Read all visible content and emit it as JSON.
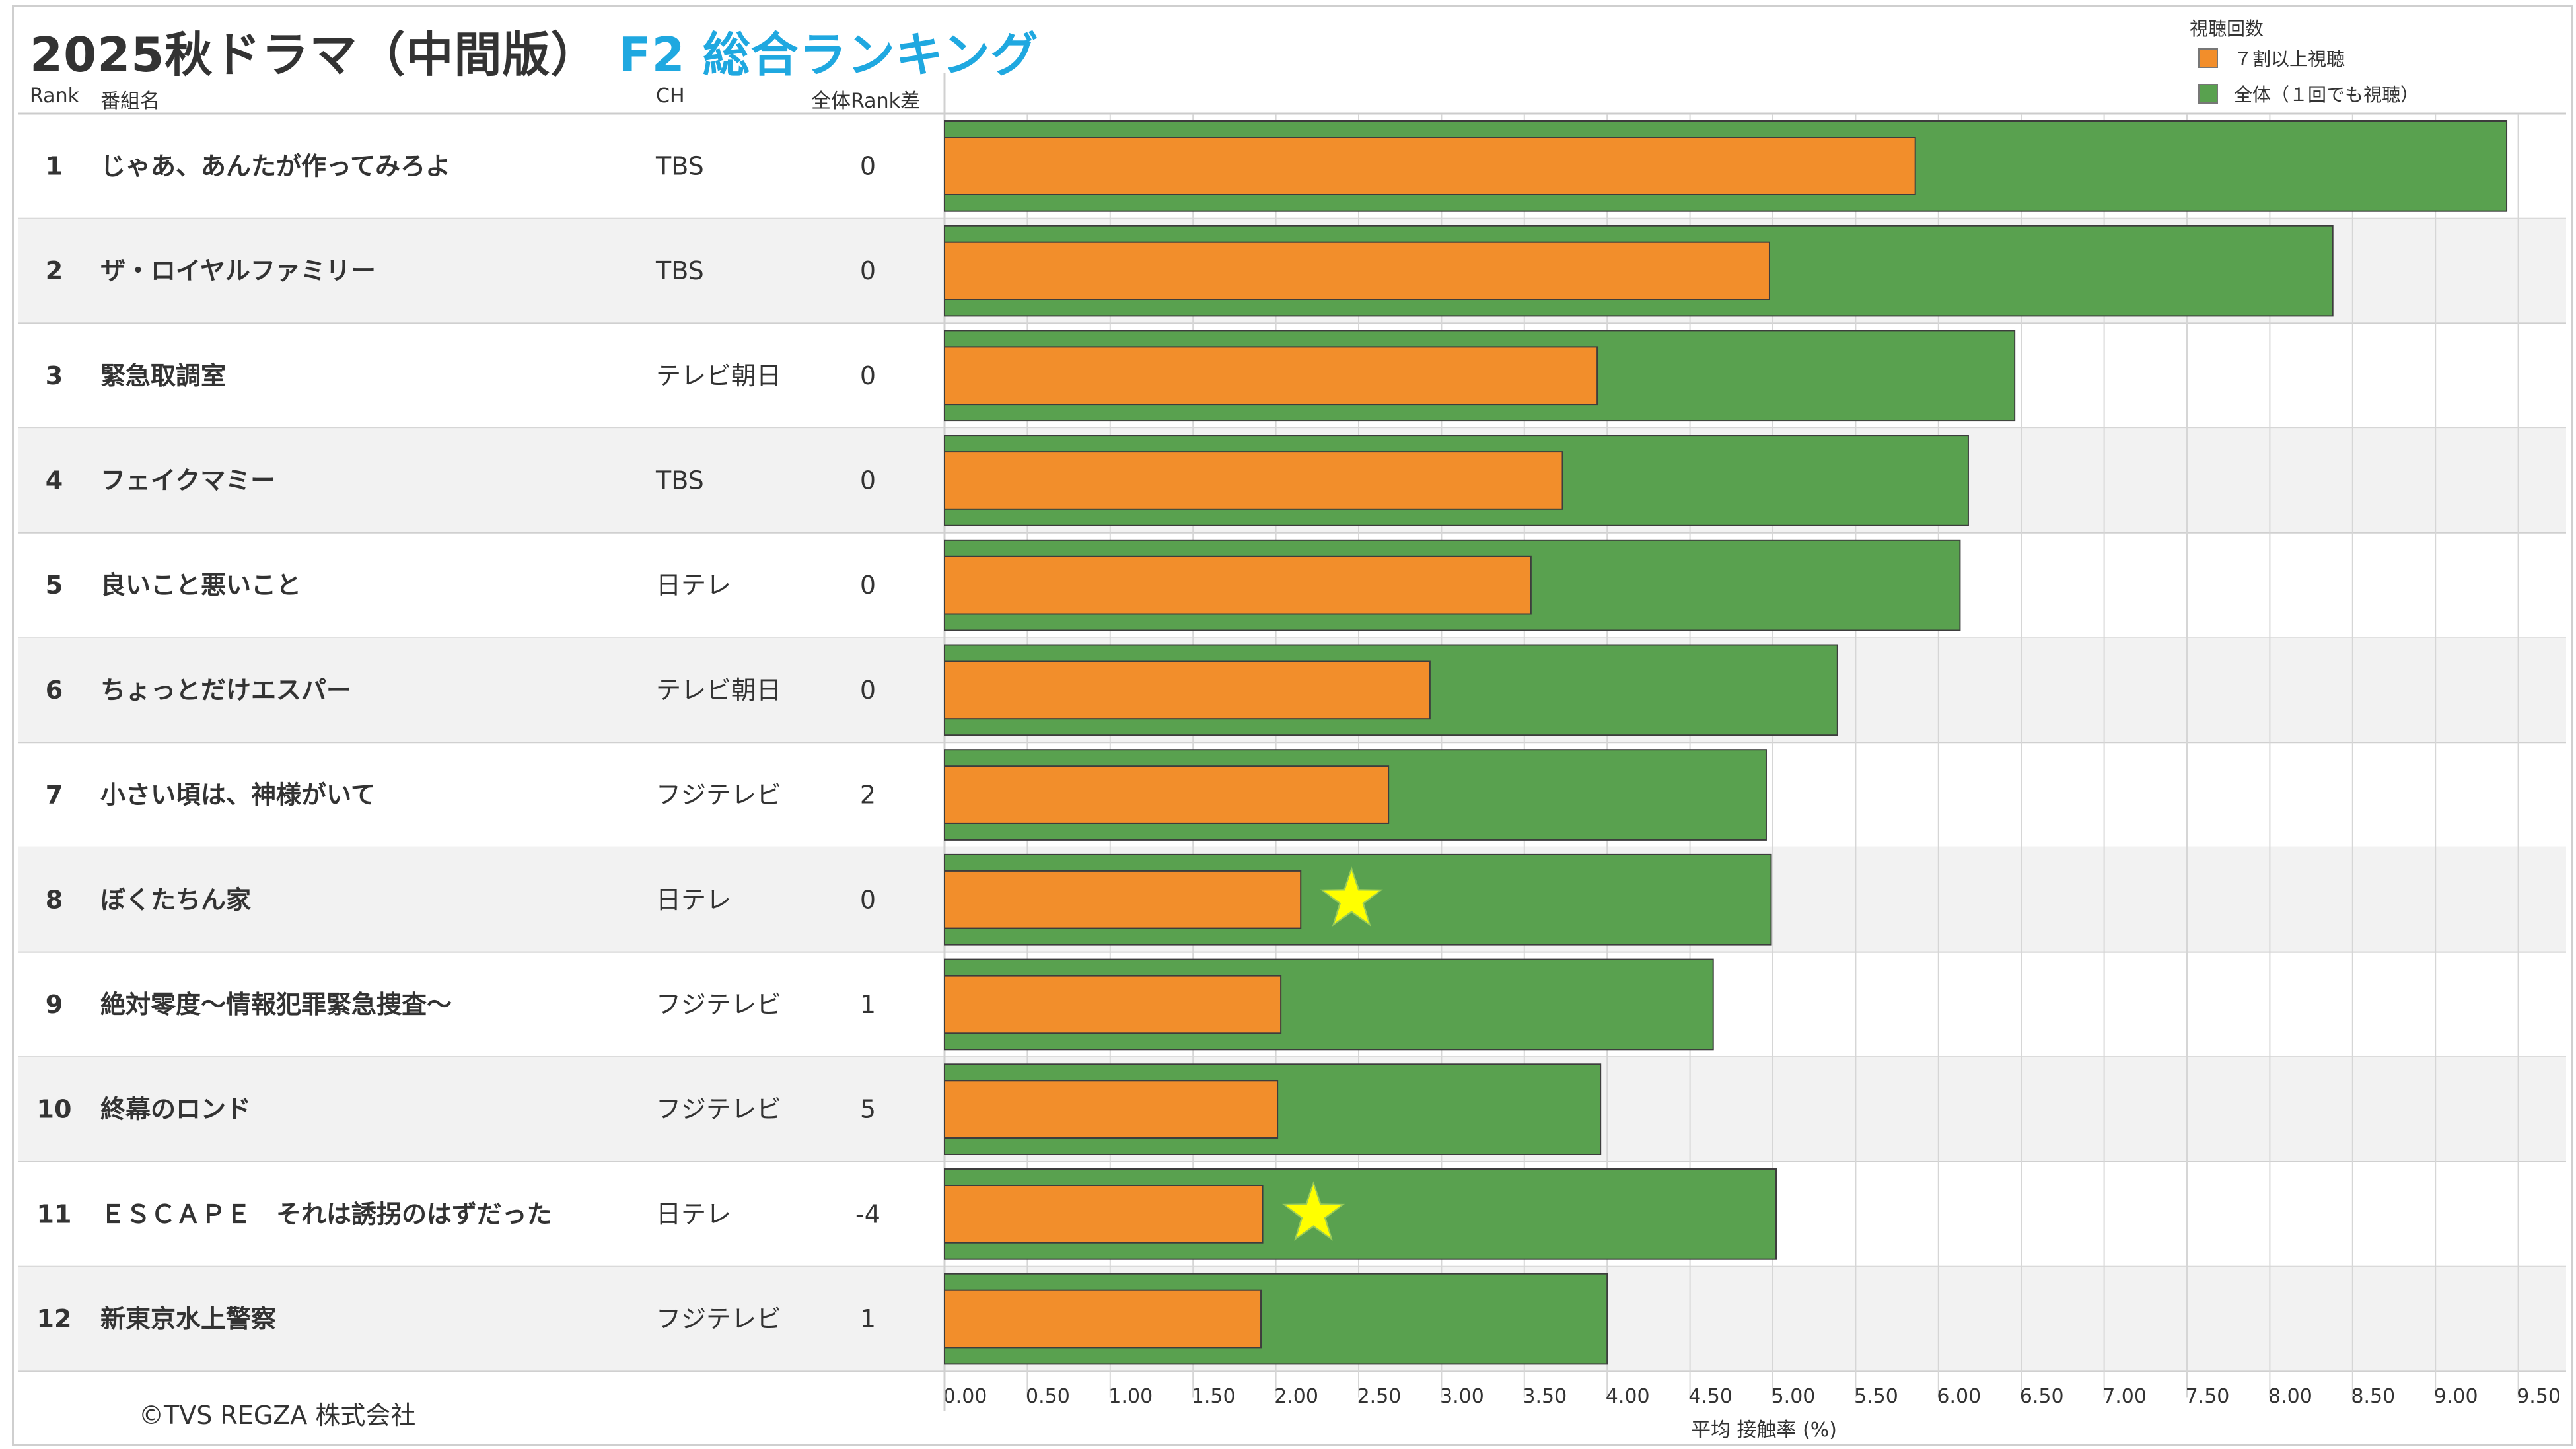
{
  "title": {
    "main": "2025秋ドラマ（中間版）",
    "sub": "F2 総合ランキング"
  },
  "table_headers": {
    "rank": "Rank",
    "program": "番組名",
    "channel": "CH",
    "rank_diff": "全体Rank差"
  },
  "legend": {
    "title": "視聴回数",
    "items": [
      {
        "label": "７割以上視聴",
        "color": "#f28e2b"
      },
      {
        "label": "全体（１回でも視聴）",
        "color": "#59a14f"
      }
    ]
  },
  "copyright": "©TVS REGZA 株式会社",
  "colors": {
    "orange": "#f28e2b",
    "green": "#59a14f",
    "row_alt": "#f2f2f2",
    "star": "#ffff00"
  },
  "chart_data": {
    "type": "bar",
    "orientation": "horizontal",
    "xlabel": "平均 接触率 (%)",
    "xlim": [
      0,
      9.5
    ],
    "x_ticks": [
      "0.00",
      "0.50",
      "1.00",
      "1.50",
      "2.00",
      "2.50",
      "3.00",
      "3.50",
      "4.00",
      "4.50",
      "5.00",
      "5.50",
      "6.00",
      "6.50",
      "7.00",
      "7.50",
      "8.00",
      "8.50",
      "9.00",
      "9.50"
    ],
    "grid": true,
    "rows": [
      {
        "rank": "1",
        "program": "じゃあ、あんたが作ってみろよ",
        "channel": "TBS",
        "rank_diff": "0",
        "overall": 9.43,
        "seventy": 5.86,
        "star": false
      },
      {
        "rank": "2",
        "program": "ザ・ロイヤルファミリー",
        "channel": "TBS",
        "rank_diff": "0",
        "overall": 8.38,
        "seventy": 4.98,
        "star": false
      },
      {
        "rank": "3",
        "program": "緊急取調室",
        "channel": "テレビ朝日",
        "rank_diff": "0",
        "overall": 6.46,
        "seventy": 3.94,
        "star": false
      },
      {
        "rank": "4",
        "program": "フェイクマミー",
        "channel": "TBS",
        "rank_diff": "0",
        "overall": 6.18,
        "seventy": 3.73,
        "star": false
      },
      {
        "rank": "5",
        "program": "良いこと悪いこと",
        "channel": "日テレ",
        "rank_diff": "0",
        "overall": 6.13,
        "seventy": 3.54,
        "star": false
      },
      {
        "rank": "6",
        "program": "ちょっとだけエスパー",
        "channel": "テレビ朝日",
        "rank_diff": "0",
        "overall": 5.39,
        "seventy": 2.93,
        "star": false
      },
      {
        "rank": "7",
        "program": "小さい頃は、神様がいて",
        "channel": "フジテレビ",
        "rank_diff": "2",
        "overall": 4.96,
        "seventy": 2.68,
        "star": false
      },
      {
        "rank": "8",
        "program": "ぼくたちん家",
        "channel": "日テレ",
        "rank_diff": "0",
        "overall": 4.99,
        "seventy": 2.15,
        "star": true
      },
      {
        "rank": "9",
        "program": "絶対零度～情報犯罪緊急捜査～",
        "channel": "フジテレビ",
        "rank_diff": "1",
        "overall": 4.64,
        "seventy": 2.03,
        "star": false
      },
      {
        "rank": "10",
        "program": "終幕のロンド",
        "channel": "フジテレビ",
        "rank_diff": "5",
        "overall": 3.96,
        "seventy": 2.01,
        "star": false
      },
      {
        "rank": "11",
        "program": "ＥＳＣＡＰＥ　それは誘拐のはずだった",
        "channel": "日テレ",
        "rank_diff": "-4",
        "overall": 5.02,
        "seventy": 1.92,
        "star": true
      },
      {
        "rank": "12",
        "program": "新東京水上警察",
        "channel": "フジテレビ",
        "rank_diff": "1",
        "overall": 4.0,
        "seventy": 1.91,
        "star": false
      }
    ]
  }
}
